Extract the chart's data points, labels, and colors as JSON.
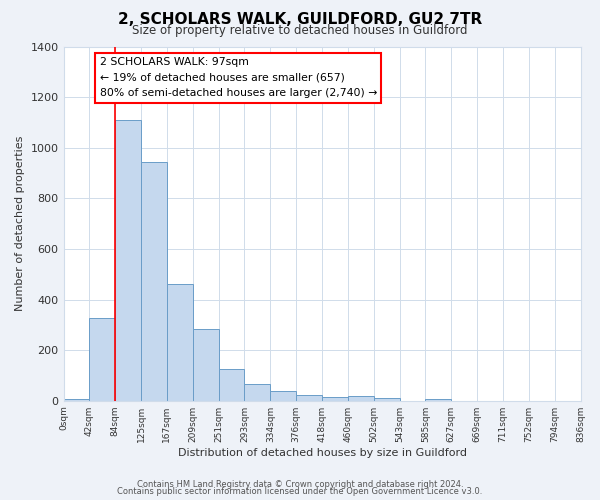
{
  "title": "2, SCHOLARS WALK, GUILDFORD, GU2 7TR",
  "subtitle": "Size of property relative to detached houses in Guildford",
  "xlabel": "Distribution of detached houses by size in Guildford",
  "ylabel": "Number of detached properties",
  "bar_values": [
    5,
    325,
    1110,
    945,
    460,
    285,
    125,
    68,
    40,
    22,
    15,
    18,
    10,
    0,
    5,
    0,
    0,
    0,
    0,
    0
  ],
  "bar_color": "#c5d8ee",
  "bar_edge_color": "#6a9dc8",
  "x_labels": [
    "0sqm",
    "42sqm",
    "84sqm",
    "125sqm",
    "167sqm",
    "209sqm",
    "251sqm",
    "293sqm",
    "334sqm",
    "376sqm",
    "418sqm",
    "460sqm",
    "502sqm",
    "543sqm",
    "585sqm",
    "627sqm",
    "669sqm",
    "711sqm",
    "752sqm",
    "794sqm",
    "836sqm"
  ],
  "ylim": [
    0,
    1400
  ],
  "yticks": [
    0,
    200,
    400,
    600,
    800,
    1000,
    1200,
    1400
  ],
  "red_line_x": 2,
  "annotation_line1": "2 SCHOLARS WALK: 97sqm",
  "annotation_line2": "← 19% of detached houses are smaller (657)",
  "annotation_line3": "80% of semi-detached houses are larger (2,740) →",
  "footer_line1": "Contains HM Land Registry data © Crown copyright and database right 2024.",
  "footer_line2": "Contains public sector information licensed under the Open Government Licence v3.0.",
  "background_color": "#eef2f8",
  "plot_bg_color": "#ffffff",
  "grid_color": "#d0dcea"
}
